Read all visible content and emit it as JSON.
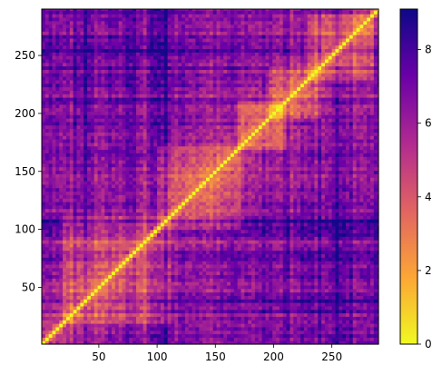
{
  "chart_data": {
    "type": "heatmap",
    "title": "",
    "xlabel": "",
    "ylabel": "",
    "xlim": [
      1,
      290
    ],
    "ylim": [
      1,
      290
    ],
    "x_ticks": [
      50,
      100,
      150,
      200,
      250
    ],
    "y_ticks": [
      50,
      100,
      150,
      200,
      250
    ],
    "origin": "lower",
    "symmetric": true,
    "diagonal_value": 0,
    "colormap": "plasma_r",
    "color_range": [
      0,
      9.1
    ],
    "colorbar_ticks": [
      0,
      2,
      4,
      6,
      8
    ],
    "colorbar_stops": [
      "#f0f921",
      "#fca636",
      "#e16462",
      "#b12a90",
      "#6a00a8",
      "#0d0887"
    ],
    "high_value_bands": [
      30,
      38,
      60,
      75,
      80,
      95,
      100,
      105,
      108,
      120,
      210,
      240,
      250,
      255,
      265
    ],
    "low_value_blocks": [
      {
        "from": 20,
        "to": 110
      },
      {
        "from": 100,
        "to": 170
      },
      {
        "from": 170,
        "to": 210
      },
      {
        "from": 195,
        "to": 240
      },
      {
        "from": 230,
        "to": 285
      }
    ],
    "xtick_labels": [
      "50",
      "100",
      "150",
      "200",
      "250"
    ],
    "ytick_labels": [
      "50",
      "100",
      "150",
      "200",
      "250"
    ],
    "colorbar_tick_labels": [
      "0",
      "2",
      "4",
      "6",
      "8"
    ]
  }
}
